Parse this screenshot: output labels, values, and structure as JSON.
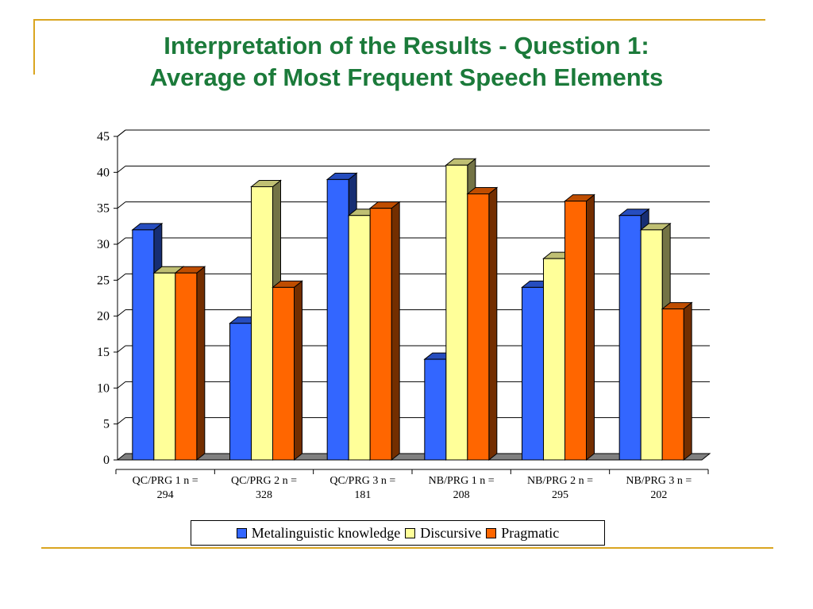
{
  "title_line1": "Interpretation of the Results - Question 1:",
  "title_line2": "Average of Most Frequent Speech Elements",
  "colors": {
    "Metalinguistic knowledge": "#3366FF",
    "Discursive": "#FFFF99",
    "Pragmatic": "#FF6600"
  },
  "chart_data": {
    "type": "bar",
    "categories": [
      [
        "QC/PRG 1 n =",
        "294"
      ],
      [
        "QC/PRG 2 n =",
        "328"
      ],
      [
        "QC/PRG 3 n =",
        "181"
      ],
      [
        "NB/PRG 1 n =",
        "208"
      ],
      [
        "NB/PRG 2 n =",
        "295"
      ],
      [
        "NB/PRG 3 n =",
        "202"
      ]
    ],
    "series": [
      {
        "name": "Metalinguistic knowledge",
        "values": [
          32,
          19,
          39,
          14,
          24,
          34
        ]
      },
      {
        "name": "Discursive",
        "values": [
          26,
          38,
          34,
          41,
          28,
          32
        ]
      },
      {
        "name": "Pragmatic",
        "values": [
          26,
          24,
          35,
          37,
          36,
          21
        ]
      }
    ],
    "yticks": [
      0,
      5,
      10,
      15,
      20,
      25,
      30,
      35,
      40,
      45
    ],
    "ylim": [
      0,
      45
    ],
    "grid": true,
    "legend_position": "bottom",
    "three_d": true
  }
}
